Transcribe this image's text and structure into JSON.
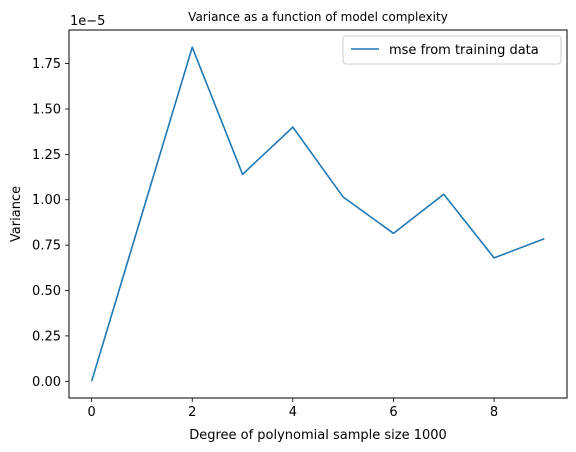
{
  "chart_data": {
    "type": "line",
    "title": "Variance as a function of model complexity",
    "xlabel": "Degree of polynomial sample size 1000",
    "ylabel": "Variance",
    "y_offset_label": "1e−5",
    "xlim": [
      -0.45,
      9.45
    ],
    "ylim": [
      -0.092,
      1.935
    ],
    "x_ticks": [
      0,
      2,
      4,
      6,
      8
    ],
    "x_tick_labels": [
      "0",
      "2",
      "4",
      "6",
      "8"
    ],
    "y_ticks": [
      0,
      0.25,
      0.5,
      0.75,
      1.0,
      1.25,
      1.5,
      1.75
    ],
    "y_tick_labels": [
      "0.00",
      "0.25",
      "0.50",
      "0.75",
      "1.00",
      "1.25",
      "1.50",
      "1.75"
    ],
    "grid": false,
    "legend_position": "upper-right",
    "series": [
      {
        "name": "mse from training data",
        "color": "#1f77b4",
        "x": [
          0,
          1,
          2,
          3,
          4,
          5,
          6,
          7,
          8,
          9
        ],
        "y": [
          0.0,
          0.92,
          1.84,
          1.14,
          1.4,
          1.015,
          0.815,
          1.03,
          0.68,
          0.785
        ]
      }
    ]
  }
}
